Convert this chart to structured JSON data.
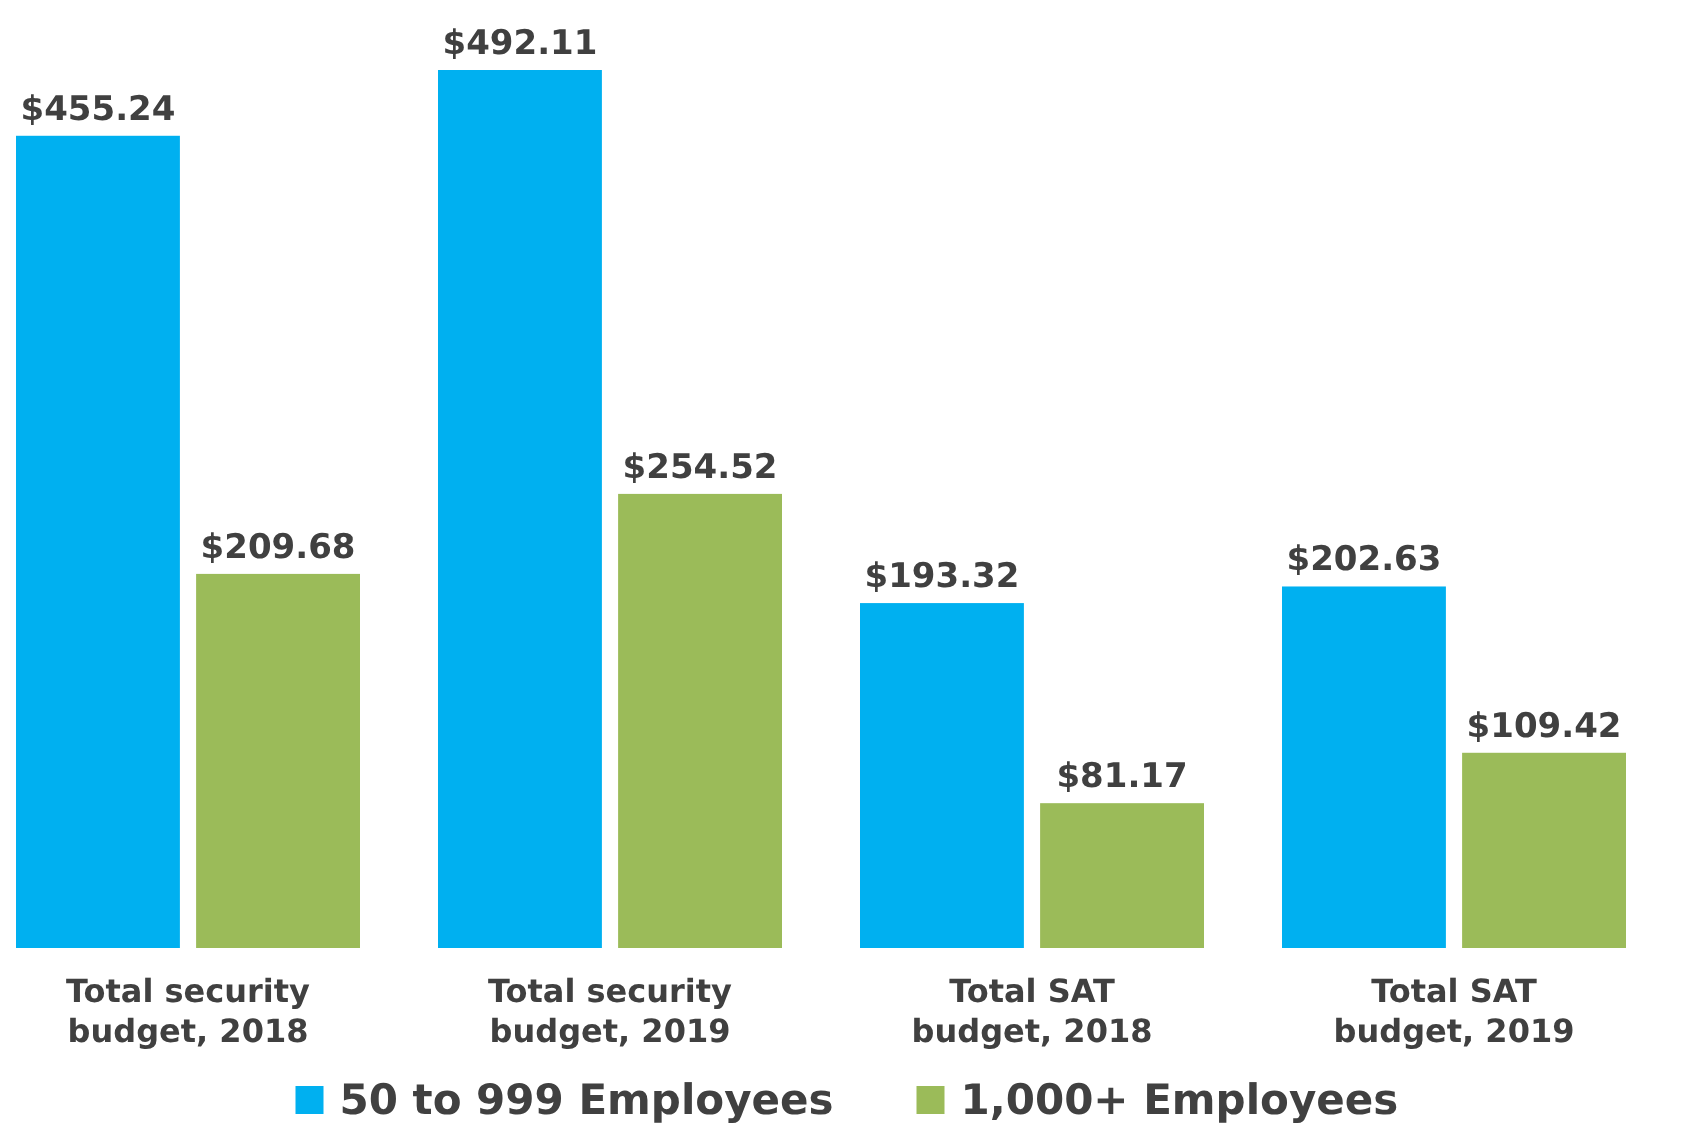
{
  "chart_data": {
    "type": "bar",
    "categories": [
      "Total security budget, 2018",
      "Total security budget, 2019",
      "Total SAT budget, 2018",
      "Total SAT budget, 2019"
    ],
    "series": [
      {
        "name": "50 to 999 Employees",
        "color": "#00b0f0",
        "values": [
          455.24,
          492.11,
          193.32,
          202.63
        ],
        "value_labels": [
          "$455.24",
          "$492.11",
          "$193.32",
          "$202.63"
        ]
      },
      {
        "name": "1,000+ Employees",
        "color": "#9bbb59",
        "values": [
          209.68,
          254.52,
          81.17,
          109.42
        ],
        "value_labels": [
          "$209.68",
          "$254.52",
          "$81.17",
          "$109.42"
        ]
      }
    ],
    "legend": "bottom"
  }
}
